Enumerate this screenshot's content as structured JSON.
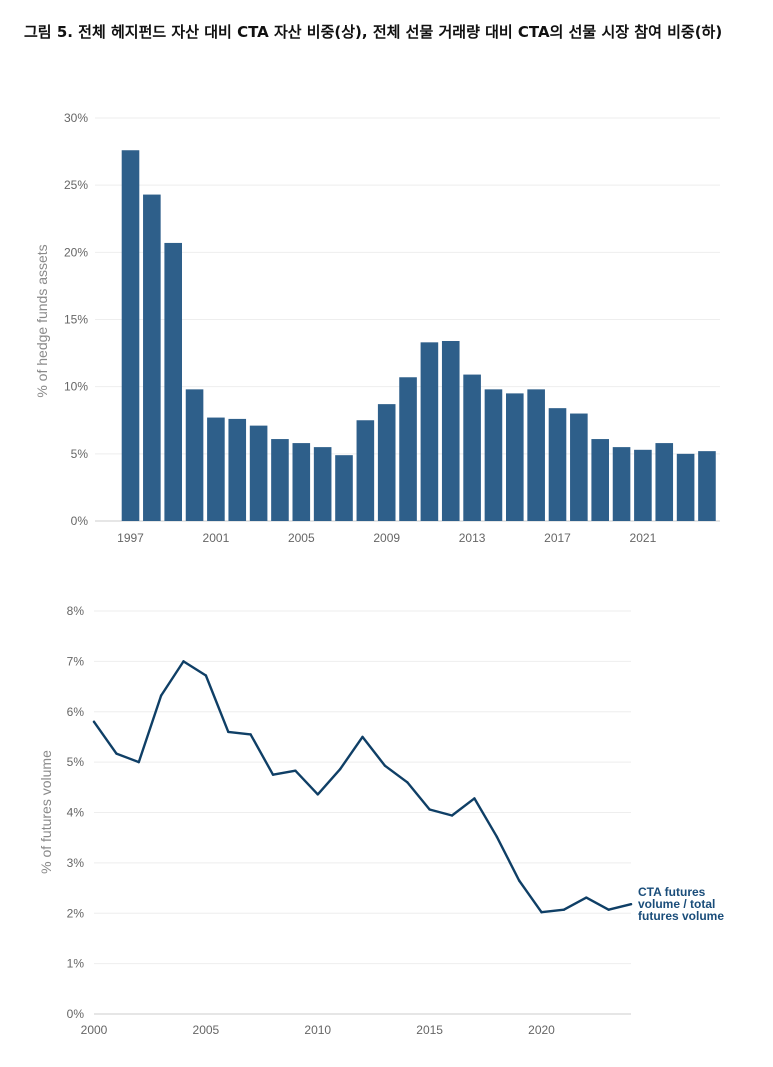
{
  "figure_title": "그림 5. 전체 헤지펀드 자산 대비 CTA 자산 비중(상), 전체 선물 거래량 대비 CTA의 선물 시장 참여 비중(하)",
  "colors": {
    "bar": "#2e5f8a",
    "line": "#0f3f66",
    "grid": "#eeeeee",
    "axis": "#cccccc"
  },
  "chart_data": [
    {
      "type": "bar",
      "title": "",
      "xlabel": "",
      "ylabel": "% of hedge funds assets",
      "ylim": [
        0,
        30
      ],
      "yticks": [
        0,
        5,
        10,
        15,
        20,
        25,
        30
      ],
      "ytick_labels": [
        "0%",
        "5%",
        "10%",
        "15%",
        "20%",
        "25%",
        "30%"
      ],
      "xticks": [
        1997,
        2001,
        2005,
        2009,
        2013,
        2017,
        2021
      ],
      "xtick_labels": [
        "1997",
        "2001",
        "2005",
        "2009",
        "2013",
        "2017",
        "2021"
      ],
      "categories": [
        1997,
        1998,
        1999,
        2000,
        2001,
        2002,
        2003,
        2004,
        2005,
        2006,
        2007,
        2008,
        2009,
        2010,
        2011,
        2012,
        2013,
        2014,
        2015,
        2016,
        2017,
        2018,
        2019,
        2020,
        2021,
        2022,
        2023,
        2024
      ],
      "values": [
        27.6,
        24.3,
        20.7,
        9.8,
        7.7,
        7.6,
        7.1,
        6.1,
        5.8,
        5.5,
        4.9,
        7.5,
        8.7,
        10.7,
        13.3,
        13.4,
        10.9,
        9.8,
        9.5,
        9.8,
        8.4,
        8.0,
        6.1,
        5.5,
        5.3,
        5.8,
        5.0,
        5.2
      ]
    },
    {
      "type": "line",
      "title": "",
      "xlabel": "",
      "ylabel": "% of futures volume",
      "ylim": [
        0,
        8
      ],
      "xlim": [
        2000,
        2024
      ],
      "yticks": [
        0,
        1,
        2,
        3,
        4,
        5,
        6,
        7,
        8
      ],
      "ytick_labels": [
        "0%",
        "1%",
        "2%",
        "3%",
        "4%",
        "5%",
        "6%",
        "7%",
        "8%"
      ],
      "xticks": [
        2000,
        2005,
        2010,
        2015,
        2020
      ],
      "xtick_labels": [
        "2000",
        "2005",
        "2010",
        "2015",
        "2020"
      ],
      "series": [
        {
          "name": "CTA futures volume / total futures volume",
          "label_lines": [
            "CTA futures",
            "volume / total",
            "futures volume"
          ],
          "x": [
            2000,
            2001,
            2002,
            2003,
            2004,
            2005,
            2006,
            2007,
            2008,
            2009,
            2010,
            2011,
            2012,
            2013,
            2014,
            2015,
            2016,
            2017,
            2018,
            2019,
            2020,
            2021,
            2022,
            2023,
            2024
          ],
          "values": [
            5.8,
            5.17,
            5.0,
            6.32,
            7.0,
            6.72,
            5.6,
            5.55,
            4.75,
            4.83,
            4.36,
            4.86,
            5.5,
            4.93,
            4.6,
            4.06,
            3.94,
            4.28,
            3.52,
            2.65,
            2.02,
            2.07,
            2.31,
            2.07,
            2.18
          ]
        }
      ]
    }
  ]
}
